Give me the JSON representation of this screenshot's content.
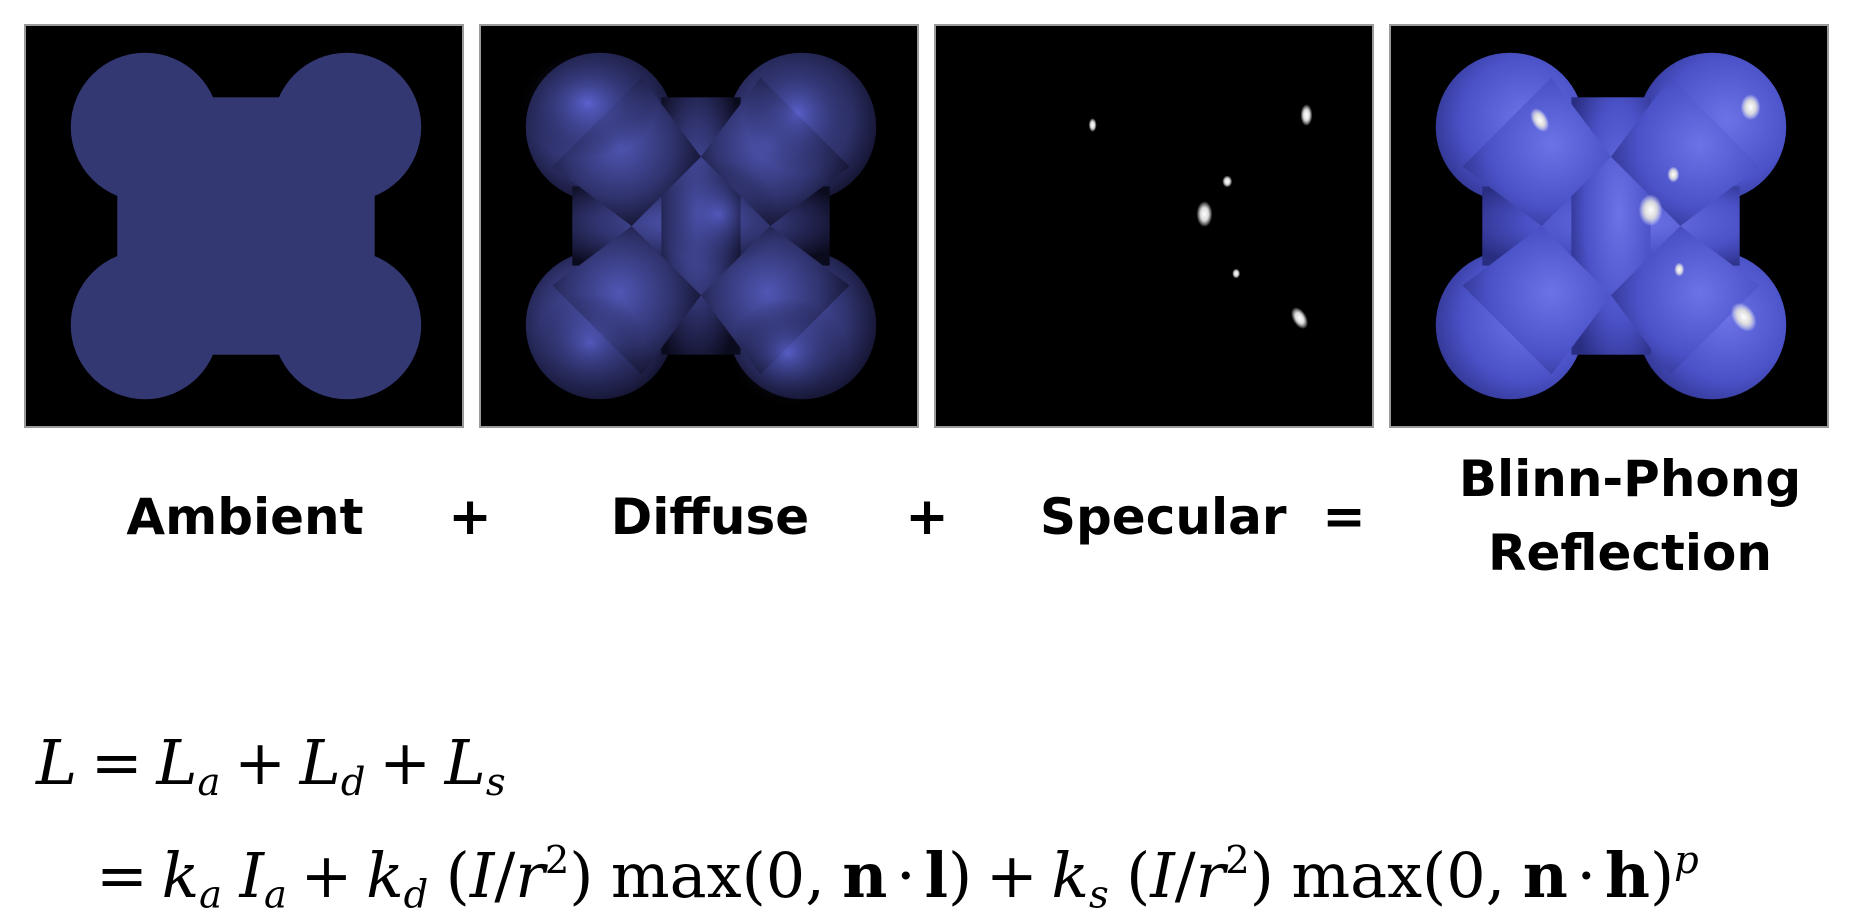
{
  "panels": [
    {
      "name": "ambient",
      "label": "Ambient"
    },
    {
      "name": "diffuse",
      "label": "Diffuse"
    },
    {
      "name": "specular",
      "label": "Specular"
    },
    {
      "name": "blinn-phong",
      "label_line1": "Blinn-Phong",
      "label_line2": "Reflection"
    }
  ],
  "operators": [
    "+",
    "+",
    "="
  ],
  "equation": {
    "line1": {
      "L": "L",
      "eq": "=",
      "La": "L",
      "a": "a",
      "plus1": "+",
      "Ld": "L",
      "d": "d",
      "plus2": "+",
      "Ls": "L",
      "s": "s"
    },
    "line2": {
      "eq": "=",
      "ka": "k",
      "ka_sub": "a",
      "Ia": "I",
      "Ia_sub": "a",
      "plus1": "+",
      "kd": "k",
      "kd_sub": "d",
      "frac1_open": "(",
      "frac1_I": "I",
      "frac1_slash": "/",
      "frac1_r": "r",
      "frac1_exp": "2",
      "frac1_close": ")",
      "max1": "max(0,",
      "n1": "n",
      "dot1": "·",
      "l": "l",
      "close1": ")",
      "plus2": "+",
      "ks": "k",
      "ks_sub": "s",
      "frac2_open": "(",
      "frac2_I": "I",
      "frac2_slash": "/",
      "frac2_r": "r",
      "frac2_exp": "2",
      "frac2_close": ")",
      "max2": "max(0,",
      "n2": "n",
      "dot2": "·",
      "h": "h",
      "close2": ")",
      "p": "p"
    }
  },
  "colors": {
    "shape_base": "#3c3f8c",
    "shape_bright": "#6b73e6",
    "specular": "#ffffff",
    "panel_bg": "#000000"
  }
}
